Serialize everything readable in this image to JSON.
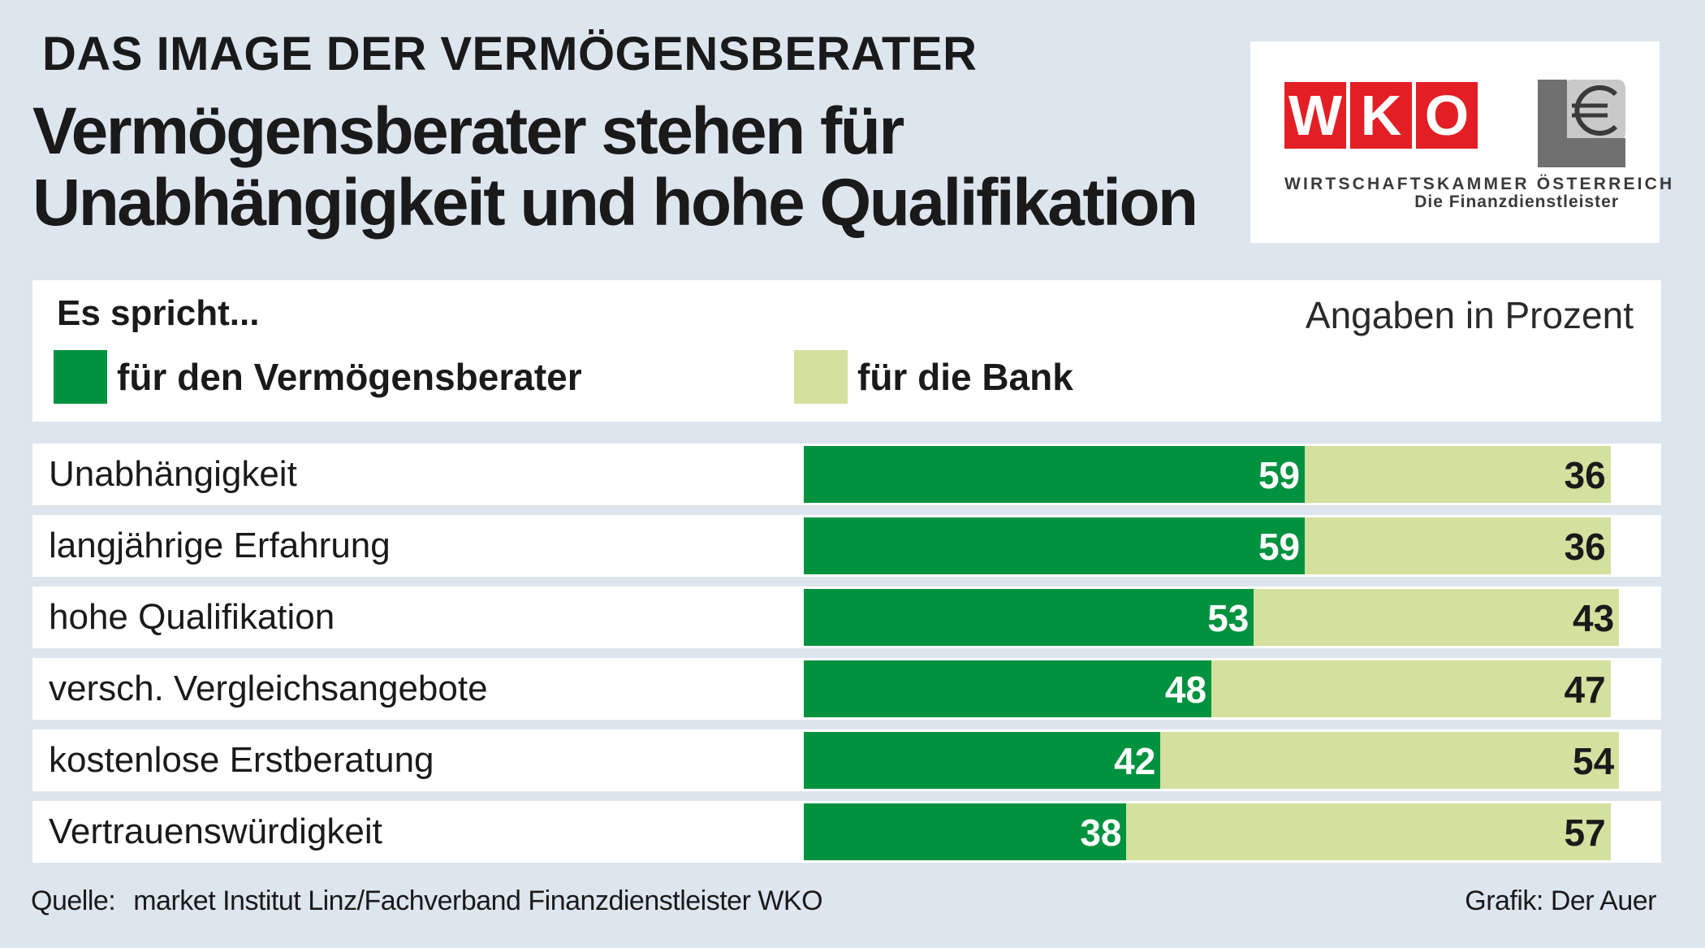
{
  "header": {
    "kicker": "DAS IMAGE DER VERMÖGENSBERATER",
    "title_line1": "Vermögensberater stehen für",
    "title_line2": "Unabhängigkeit und hohe Qualifikation"
  },
  "logo": {
    "letters": [
      "W",
      "K",
      "O"
    ],
    "line1": "WIRTSCHAFTSKAMMER ÖSTERREICH",
    "line2": "Die Finanzdienstleister",
    "icon": "euro-icon",
    "color": "#e31e24"
  },
  "legend": {
    "heading": "Es spricht...",
    "unit": "Angaben in Prozent",
    "items": [
      {
        "label": "für den Vermögensberater",
        "color": "#00923f"
      },
      {
        "label": "für die Bank",
        "color": "#d4e09e"
      }
    ]
  },
  "chart_data": {
    "type": "bar",
    "stacked": true,
    "orientation": "horizontal",
    "categories": [
      "Unabhängigkeit",
      "langjährige Erfahrung",
      "hohe Qualifikation",
      "versch. Vergleichsangebote",
      "kostenlose Erstberatung",
      "Vertrauenswürdigkeit"
    ],
    "series": [
      {
        "name": "für den Vermögensberater",
        "color": "#00923f",
        "values": [
          59,
          59,
          53,
          48,
          42,
          38
        ]
      },
      {
        "name": "für die Bank",
        "color": "#d4e09e",
        "values": [
          36,
          36,
          43,
          47,
          54,
          57
        ]
      }
    ],
    "unit": "Angaben in Prozent",
    "legend_position": "top"
  },
  "footer": {
    "source_label": "Quelle:",
    "source_text": "market Institut Linz/Fachverband Finanzdienstleister WKO",
    "credit": "Grafik: Der Auer"
  }
}
